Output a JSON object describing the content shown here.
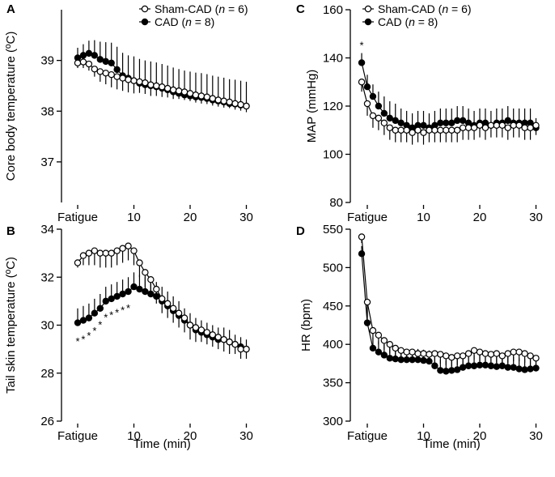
{
  "chart_data": [
    {
      "type": "line",
      "panel": "A",
      "title": "",
      "xlabel": "",
      "ylabel": "Core body temperature (ºC)",
      "ylim": [
        36.2,
        40.0
      ],
      "yticks": [
        37,
        38,
        39
      ],
      "xlim": [
        -2,
        32
      ],
      "xticks": [
        {
          "value": 0,
          "label": "Fatigue"
        },
        {
          "value": 10,
          "label": "10"
        },
        {
          "value": 20,
          "label": "20"
        },
        {
          "value": 30,
          "label": "30"
        }
      ],
      "legend": {
        "position": "top-right",
        "entries": [
          {
            "marker": "open",
            "pre": "Sham-CAD (",
            "italic": "n",
            "post": " = 6)"
          },
          {
            "marker": "filled",
            "pre": "CAD (",
            "italic": "n",
            "post": " = 8)"
          }
        ]
      },
      "series": [
        {
          "name": "Sham-CAD",
          "marker": "open",
          "x": [
            0,
            1,
            2,
            3,
            4,
            5,
            6,
            7,
            8,
            9,
            10,
            11,
            12,
            13,
            14,
            15,
            16,
            17,
            18,
            19,
            20,
            21,
            22,
            23,
            24,
            25,
            26,
            27,
            28,
            29,
            30
          ],
          "y": [
            38.95,
            38.97,
            38.93,
            38.83,
            38.78,
            38.75,
            38.72,
            38.68,
            38.65,
            38.62,
            38.6,
            38.58,
            38.56,
            38.52,
            38.5,
            38.48,
            38.45,
            38.42,
            38.4,
            38.38,
            38.35,
            38.32,
            38.3,
            38.28,
            38.25,
            38.22,
            38.2,
            38.18,
            38.15,
            38.13,
            38.1
          ],
          "err": [
            0.1,
            0.12,
            0.13,
            0.15,
            0.2,
            0.22,
            0.25,
            0.25,
            0.25,
            0.25,
            0.25,
            0.22,
            0.22,
            0.22,
            0.2,
            0.2,
            0.18,
            0.18,
            0.16,
            0.16,
            0.15,
            0.15,
            0.15,
            0.14,
            0.14,
            0.13,
            0.13,
            0.12,
            0.12,
            0.12,
            0.12
          ]
        },
        {
          "name": "CAD",
          "marker": "filled",
          "x": [
            0,
            1,
            2,
            3,
            4,
            5,
            6,
            7,
            8,
            9,
            10,
            11,
            12,
            13,
            14,
            15,
            16,
            17,
            18,
            19,
            20,
            21,
            22,
            23,
            24,
            25,
            26,
            27,
            28,
            29,
            30
          ],
          "y": [
            39.05,
            39.1,
            39.14,
            39.1,
            39.02,
            38.98,
            38.95,
            38.82,
            38.7,
            38.65,
            38.6,
            38.55,
            38.52,
            38.5,
            38.48,
            38.45,
            38.42,
            38.38,
            38.35,
            38.32,
            38.3,
            38.28,
            38.27,
            38.25,
            38.22,
            38.2,
            38.18,
            38.15,
            38.14,
            38.12,
            38.1
          ],
          "err": [
            0.2,
            0.22,
            0.25,
            0.3,
            0.35,
            0.38,
            0.4,
            0.45,
            0.45,
            0.45,
            0.48,
            0.48,
            0.48,
            0.48,
            0.48,
            0.48,
            0.48,
            0.48,
            0.48,
            0.48,
            0.48,
            0.48,
            0.48,
            0.48,
            0.48,
            0.48,
            0.48,
            0.48,
            0.48,
            0.48,
            0.48
          ]
        }
      ],
      "annotations": []
    },
    {
      "type": "line",
      "panel": "B",
      "title": "",
      "xlabel": "Time (min)",
      "ylabel": "Tail skin temperature (ºC)",
      "ylim": [
        26,
        34
      ],
      "yticks": [
        26,
        28,
        30,
        32,
        34
      ],
      "xlim": [
        -2,
        32
      ],
      "xticks": [
        {
          "value": 0,
          "label": "Fatigue"
        },
        {
          "value": 10,
          "label": "10"
        },
        {
          "value": 20,
          "label": "20"
        },
        {
          "value": 30,
          "label": "30"
        }
      ],
      "series": [
        {
          "name": "Sham-CAD",
          "marker": "open",
          "x": [
            0,
            1,
            2,
            3,
            4,
            5,
            6,
            7,
            8,
            9,
            10,
            11,
            12,
            13,
            14,
            15,
            16,
            17,
            18,
            19,
            20,
            21,
            22,
            23,
            24,
            25,
            26,
            27,
            28,
            29,
            30
          ],
          "y": [
            32.6,
            32.9,
            33.0,
            33.1,
            33.0,
            33.0,
            33.0,
            33.1,
            33.2,
            33.3,
            33.1,
            32.6,
            32.2,
            31.9,
            31.5,
            31.1,
            30.9,
            30.7,
            30.5,
            30.3,
            30.0,
            29.9,
            29.8,
            29.7,
            29.6,
            29.5,
            29.4,
            29.3,
            29.2,
            29.0,
            29.0
          ],
          "err": [
            0.2,
            0.4,
            0.5,
            0.6,
            0.6,
            0.6,
            0.6,
            0.6,
            0.6,
            0.6,
            0.6,
            0.6,
            0.6,
            0.6,
            0.6,
            0.6,
            0.6,
            0.6,
            0.6,
            0.6,
            0.6,
            0.6,
            0.5,
            0.5,
            0.5,
            0.5,
            0.5,
            0.5,
            0.4,
            0.4,
            0.4
          ]
        },
        {
          "name": "CAD",
          "marker": "filled",
          "x": [
            0,
            1,
            2,
            3,
            4,
            5,
            6,
            7,
            8,
            9,
            10,
            11,
            12,
            13,
            14,
            15,
            16,
            17,
            18,
            19,
            20,
            21,
            22,
            23,
            24,
            25,
            26,
            27,
            28,
            29,
            30
          ],
          "y": [
            30.1,
            30.2,
            30.3,
            30.5,
            30.7,
            31.0,
            31.1,
            31.2,
            31.3,
            31.4,
            31.6,
            31.5,
            31.4,
            31.3,
            31.2,
            31.0,
            30.8,
            30.6,
            30.4,
            30.2,
            30.0,
            29.8,
            29.7,
            29.6,
            29.5,
            29.4,
            29.4,
            29.3,
            29.2,
            29.1,
            29.0
          ],
          "err": [
            0.6,
            0.6,
            0.6,
            0.6,
            0.6,
            0.6,
            0.6,
            0.6,
            0.6,
            0.6,
            0.6,
            0.6,
            0.6,
            0.6,
            0.6,
            0.6,
            0.6,
            0.6,
            0.6,
            0.5,
            0.5,
            0.5,
            0.5,
            0.5,
            0.5,
            0.5,
            0.5,
            0.5,
            0.4,
            0.4,
            0.4
          ]
        }
      ],
      "annotations": [
        {
          "x": 0,
          "y": 29.3,
          "text": "*"
        },
        {
          "x": 1,
          "y": 29.4,
          "text": "*"
        },
        {
          "x": 2,
          "y": 29.55,
          "text": "*"
        },
        {
          "x": 3,
          "y": 29.75,
          "text": "*"
        },
        {
          "x": 4,
          "y": 30.0,
          "text": "*"
        },
        {
          "x": 5,
          "y": 30.3,
          "text": "*"
        },
        {
          "x": 6,
          "y": 30.4,
          "text": "*"
        },
        {
          "x": 7,
          "y": 30.5,
          "text": "*"
        },
        {
          "x": 8,
          "y": 30.6,
          "text": "*"
        },
        {
          "x": 9,
          "y": 30.7,
          "text": "*"
        }
      ]
    },
    {
      "type": "line",
      "panel": "C",
      "title": "",
      "xlabel": "",
      "ylabel": "MAP  (mmHg)",
      "ylim": [
        80,
        160
      ],
      "yticks": [
        80,
        100,
        120,
        140,
        160
      ],
      "xlim": [
        -2,
        32
      ],
      "xticks": [
        {
          "value": 0,
          "label": "Fatigue"
        },
        {
          "value": 10,
          "label": "10"
        },
        {
          "value": 20,
          "label": "20"
        },
        {
          "value": 30,
          "label": "30"
        }
      ],
      "legend": {
        "position": "top-right",
        "entries": [
          {
            "marker": "open",
            "pre": "Sham-CAD (",
            "italic": "n",
            "post": " = 6)"
          },
          {
            "marker": "filled",
            "pre": "CAD (",
            "italic": "n",
            "post": " = 8)"
          }
        ]
      },
      "series": [
        {
          "name": "Sham-CAD",
          "marker": "open",
          "x": [
            -1,
            0,
            1,
            2,
            3,
            4,
            5,
            6,
            7,
            8,
            9,
            10,
            11,
            12,
            13,
            14,
            15,
            16,
            17,
            18,
            19,
            20,
            21,
            22,
            23,
            24,
            25,
            26,
            27,
            28,
            29,
            30
          ],
          "y": [
            130,
            121,
            116,
            115,
            113,
            111,
            110,
            110,
            110,
            109,
            110,
            109,
            110,
            110,
            110,
            110,
            110,
            110,
            111,
            111,
            111,
            112,
            111,
            112,
            112,
            112,
            111,
            112,
            112,
            111,
            111,
            112
          ],
          "err": [
            4,
            5,
            5,
            5,
            5,
            5,
            5,
            5,
            5,
            5,
            5,
            5,
            5,
            5,
            5,
            5,
            5,
            5,
            5,
            5,
            5,
            5,
            5,
            5,
            5,
            5,
            5,
            5,
            5,
            5,
            5,
            4
          ]
        },
        {
          "name": "CAD",
          "marker": "filled",
          "x": [
            -1,
            0,
            1,
            2,
            3,
            4,
            5,
            6,
            7,
            8,
            9,
            10,
            11,
            12,
            13,
            14,
            15,
            16,
            17,
            18,
            19,
            20,
            21,
            22,
            23,
            24,
            25,
            26,
            27,
            28,
            29,
            30
          ],
          "y": [
            138,
            128,
            124,
            120,
            117,
            115,
            114,
            113,
            112,
            111,
            112,
            112,
            111,
            112,
            113,
            113,
            113,
            114,
            114,
            113,
            112,
            113,
            113,
            112,
            113,
            113,
            114,
            113,
            113,
            113,
            113,
            111
          ],
          "err": [
            4,
            5,
            5,
            6,
            7,
            7,
            7,
            6,
            6,
            6,
            6,
            6,
            6,
            6,
            6,
            6,
            6,
            6,
            6,
            6,
            6,
            6,
            6,
            6,
            6,
            6,
            6,
            6,
            6,
            6,
            6,
            4
          ]
        }
      ],
      "annotations": [
        {
          "x": -1,
          "y": 145,
          "text": "*"
        }
      ]
    },
    {
      "type": "line",
      "panel": "D",
      "title": "",
      "xlabel": "Time (min)",
      "ylabel": "HR  (bpm)",
      "ylim": [
        300,
        550
      ],
      "yticks": [
        300,
        350,
        400,
        450,
        500,
        550
      ],
      "xlim": [
        -2,
        32
      ],
      "xticks": [
        {
          "value": 0,
          "label": "Fatigue"
        },
        {
          "value": 10,
          "label": "10"
        },
        {
          "value": 20,
          "label": "20"
        },
        {
          "value": 30,
          "label": "30"
        }
      ],
      "series": [
        {
          "name": "Sham-CAD",
          "marker": "open",
          "x": [
            -1,
            0,
            1,
            2,
            3,
            4,
            5,
            6,
            7,
            8,
            9,
            10,
            11,
            12,
            13,
            14,
            15,
            16,
            17,
            18,
            19,
            20,
            21,
            22,
            23,
            24,
            25,
            26,
            27,
            28,
            29,
            30
          ],
          "y": [
            540,
            455,
            418,
            412,
            405,
            400,
            395,
            392,
            390,
            390,
            388,
            388,
            387,
            388,
            387,
            385,
            383,
            385,
            385,
            388,
            392,
            390,
            388,
            387,
            388,
            385,
            388,
            390,
            390,
            388,
            385,
            382
          ],
          "err": [
            8,
            20,
            12,
            12,
            12,
            12,
            12,
            12,
            12,
            12,
            12,
            12,
            12,
            12,
            12,
            12,
            12,
            12,
            12,
            12,
            12,
            12,
            12,
            12,
            12,
            12,
            12,
            12,
            12,
            12,
            12,
            8
          ]
        },
        {
          "name": "CAD",
          "marker": "filled",
          "x": [
            -1,
            0,
            1,
            2,
            3,
            4,
            5,
            6,
            7,
            8,
            9,
            10,
            11,
            12,
            13,
            14,
            15,
            16,
            17,
            18,
            19,
            20,
            21,
            22,
            23,
            24,
            25,
            26,
            27,
            28,
            29,
            30
          ],
          "y": [
            518,
            428,
            395,
            390,
            386,
            382,
            381,
            380,
            380,
            380,
            380,
            379,
            378,
            372,
            366,
            365,
            366,
            367,
            370,
            372,
            372,
            373,
            373,
            372,
            371,
            372,
            370,
            370,
            368,
            367,
            368,
            369
          ],
          "err": [
            10,
            20,
            14,
            14,
            14,
            14,
            14,
            14,
            14,
            14,
            14,
            14,
            14,
            14,
            14,
            14,
            14,
            14,
            14,
            14,
            14,
            14,
            14,
            14,
            14,
            14,
            14,
            14,
            14,
            14,
            14,
            10
          ]
        }
      ],
      "annotations": []
    }
  ]
}
